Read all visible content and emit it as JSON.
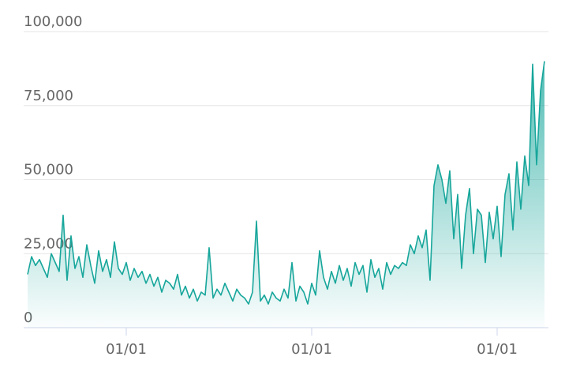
{
  "chart_data": {
    "type": "area",
    "categories": [
      null,
      null,
      null,
      null,
      null,
      null,
      null,
      null,
      null,
      null,
      null,
      null,
      null,
      null,
      null,
      null,
      null,
      null,
      null,
      null,
      null,
      null,
      null,
      null,
      null,
      "01/01",
      null,
      null,
      null,
      null,
      null,
      null,
      null,
      null,
      null,
      null,
      null,
      null,
      null,
      null,
      null,
      null,
      null,
      null,
      null,
      null,
      null,
      null,
      null,
      null,
      null,
      null,
      null,
      null,
      null,
      null,
      null,
      null,
      null,
      null,
      null,
      null,
      null,
      null,
      null,
      null,
      null,
      null,
      null,
      null,
      null,
      null,
      "01/01",
      null,
      null,
      null,
      null,
      null,
      null,
      null,
      null,
      null,
      null,
      null,
      null,
      null,
      null,
      null,
      null,
      null,
      null,
      null,
      null,
      null,
      null,
      null,
      null,
      null,
      null,
      null,
      null,
      null,
      null,
      null,
      null,
      null,
      null,
      null,
      null,
      null,
      null,
      null,
      null,
      null,
      null,
      null,
      null,
      null,
      null,
      "01/01",
      null,
      null,
      null,
      null,
      null,
      null,
      null,
      null,
      null,
      null,
      null,
      null
    ],
    "values": [
      18000,
      24000,
      21000,
      23000,
      20000,
      17000,
      25000,
      22000,
      19000,
      38000,
      16000,
      31000,
      20000,
      24000,
      17000,
      28000,
      21000,
      15000,
      26000,
      19000,
      23000,
      17000,
      29000,
      20000,
      18000,
      22000,
      16000,
      20000,
      17000,
      19000,
      15000,
      18000,
      14000,
      17000,
      12000,
      16000,
      15000,
      13000,
      18000,
      11000,
      14000,
      10000,
      13000,
      9000,
      12000,
      11000,
      27000,
      10000,
      13000,
      11000,
      15000,
      12000,
      9000,
      13000,
      11000,
      10000,
      8000,
      12000,
      36000,
      9000,
      11000,
      8000,
      12000,
      10000,
      9000,
      13000,
      10000,
      22000,
      9000,
      14000,
      12000,
      8000,
      15000,
      11000,
      26000,
      17000,
      13000,
      19000,
      15000,
      21000,
      16000,
      20000,
      14000,
      22000,
      18000,
      21000,
      12000,
      23000,
      17000,
      20000,
      13000,
      22000,
      18000,
      21000,
      20000,
      22000,
      21000,
      28000,
      25000,
      31000,
      27000,
      33000,
      16000,
      48000,
      55000,
      50000,
      42000,
      53000,
      30000,
      45000,
      20000,
      38000,
      47000,
      25000,
      40000,
      38000,
      22000,
      39000,
      30000,
      41000,
      24000,
      45000,
      52000,
      33000,
      56000,
      40000,
      58000,
      48000,
      89000,
      55000,
      80000,
      90000
    ],
    "color": "#17a69b",
    "ylim": [
      0,
      100000
    ],
    "yticks": [
      0,
      {
        "value": 25000,
        "label": "25,000"
      },
      {
        "value": 50000,
        "label": "50,000"
      },
      {
        "value": 75000,
        "label": "75,000"
      },
      {
        "value": 100000,
        "label": "100,000"
      }
    ],
    "grid": true
  }
}
